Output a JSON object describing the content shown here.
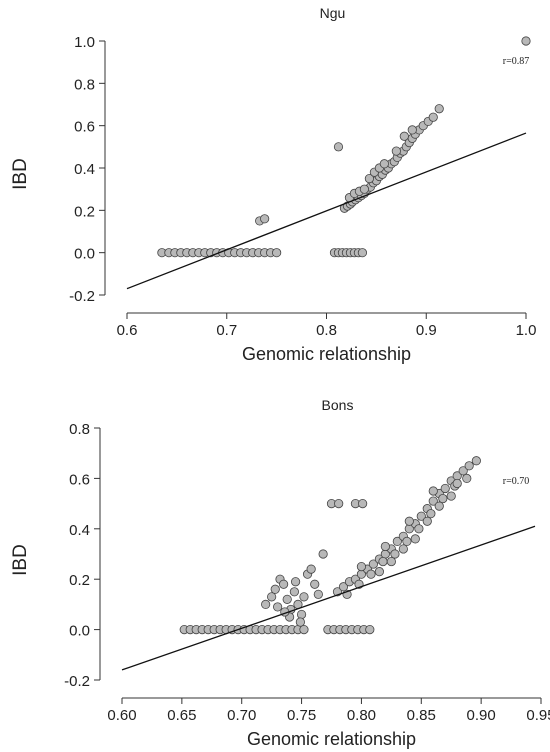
{
  "colors": {
    "point_fill": "#b8b8b8",
    "point_stroke": "#444444",
    "line": "#111111",
    "axis": "#333333"
  },
  "chart_data": [
    {
      "type": "scatter",
      "title": "Ngu",
      "xlabel": "Genomic relationship",
      "ylabel": "IBD",
      "annotation": "r=0.87",
      "xlim": [
        0.6,
        1.0
      ],
      "ylim": [
        -0.2,
        1.0
      ],
      "xticks": [
        "0.6",
        "0.7",
        "0.8",
        "0.9",
        "1.0"
      ],
      "yticks": [
        "-0.2",
        "0.0",
        "0.2",
        "0.4",
        "0.6",
        "0.8",
        "1.0"
      ],
      "grid": false,
      "legend": "none",
      "fit_line": {
        "x": [
          0.6,
          1.0
        ],
        "y": [
          -0.17,
          0.565
        ]
      },
      "points": [
        [
          0.635,
          0
        ],
        [
          0.642,
          0
        ],
        [
          0.648,
          0
        ],
        [
          0.654,
          0
        ],
        [
          0.66,
          0
        ],
        [
          0.666,
          0
        ],
        [
          0.672,
          0
        ],
        [
          0.678,
          0
        ],
        [
          0.684,
          0
        ],
        [
          0.69,
          0
        ],
        [
          0.696,
          0
        ],
        [
          0.702,
          0
        ],
        [
          0.708,
          0
        ],
        [
          0.714,
          0
        ],
        [
          0.72,
          0
        ],
        [
          0.726,
          0
        ],
        [
          0.732,
          0
        ],
        [
          0.738,
          0
        ],
        [
          0.744,
          0
        ],
        [
          0.75,
          0
        ],
        [
          0.808,
          0
        ],
        [
          0.812,
          0
        ],
        [
          0.816,
          0
        ],
        [
          0.82,
          0
        ],
        [
          0.824,
          0
        ],
        [
          0.828,
          0
        ],
        [
          0.832,
          0
        ],
        [
          0.836,
          0
        ],
        [
          0.733,
          0.15
        ],
        [
          0.738,
          0.16
        ],
        [
          0.812,
          0.5
        ],
        [
          1.0,
          1.0
        ],
        [
          0.818,
          0.21
        ],
        [
          0.821,
          0.22
        ],
        [
          0.824,
          0.23
        ],
        [
          0.826,
          0.24
        ],
        [
          0.829,
          0.25
        ],
        [
          0.832,
          0.26
        ],
        [
          0.835,
          0.27
        ],
        [
          0.838,
          0.28
        ],
        [
          0.841,
          0.3
        ],
        [
          0.844,
          0.31
        ],
        [
          0.847,
          0.33
        ],
        [
          0.85,
          0.34
        ],
        [
          0.853,
          0.36
        ],
        [
          0.856,
          0.37
        ],
        [
          0.859,
          0.39
        ],
        [
          0.862,
          0.4
        ],
        [
          0.865,
          0.42
        ],
        [
          0.868,
          0.43
        ],
        [
          0.871,
          0.45
        ],
        [
          0.874,
          0.47
        ],
        [
          0.877,
          0.48
        ],
        [
          0.88,
          0.5
        ],
        [
          0.883,
          0.52
        ],
        [
          0.886,
          0.54
        ],
        [
          0.889,
          0.56
        ],
        [
          0.893,
          0.58
        ],
        [
          0.897,
          0.6
        ],
        [
          0.902,
          0.62
        ],
        [
          0.907,
          0.64
        ],
        [
          0.913,
          0.68
        ],
        [
          0.823,
          0.26
        ],
        [
          0.828,
          0.28
        ],
        [
          0.833,
          0.29
        ],
        [
          0.838,
          0.3
        ],
        [
          0.843,
          0.35
        ],
        [
          0.848,
          0.38
        ],
        [
          0.853,
          0.4
        ],
        [
          0.858,
          0.42
        ],
        [
          0.87,
          0.48
        ],
        [
          0.878,
          0.55
        ],
        [
          0.886,
          0.58
        ]
      ]
    },
    {
      "type": "scatter",
      "title": "Bons",
      "xlabel": "Genomic relationship",
      "ylabel": "IBD",
      "annotation": "r=0.70",
      "xlim": [
        0.6,
        0.95
      ],
      "ylim": [
        -0.2,
        0.8
      ],
      "xticks": [
        "0.60",
        "0.65",
        "0.70",
        "0.75",
        "0.80",
        "0.85",
        "0.90",
        "0.95"
      ],
      "yticks": [
        "-0.2",
        "0.0",
        "0.2",
        "0.4",
        "0.6",
        "0.8"
      ],
      "grid": false,
      "legend": "none",
      "fit_line": {
        "x": [
          0.6,
          0.945
        ],
        "y": [
          -0.16,
          0.41
        ]
      },
      "points": [
        [
          0.652,
          0
        ],
        [
          0.657,
          0
        ],
        [
          0.662,
          0
        ],
        [
          0.667,
          0
        ],
        [
          0.672,
          0
        ],
        [
          0.677,
          0
        ],
        [
          0.682,
          0
        ],
        [
          0.687,
          0
        ],
        [
          0.692,
          0
        ],
        [
          0.697,
          0
        ],
        [
          0.702,
          0
        ],
        [
          0.707,
          0
        ],
        [
          0.712,
          0
        ],
        [
          0.717,
          0
        ],
        [
          0.722,
          0
        ],
        [
          0.727,
          0
        ],
        [
          0.732,
          0
        ],
        [
          0.737,
          0
        ],
        [
          0.742,
          0
        ],
        [
          0.747,
          0
        ],
        [
          0.752,
          0
        ],
        [
          0.772,
          0
        ],
        [
          0.777,
          0
        ],
        [
          0.782,
          0
        ],
        [
          0.787,
          0
        ],
        [
          0.792,
          0
        ],
        [
          0.797,
          0
        ],
        [
          0.802,
          0
        ],
        [
          0.807,
          0
        ],
        [
          0.775,
          0.5
        ],
        [
          0.781,
          0.5
        ],
        [
          0.795,
          0.5
        ],
        [
          0.801,
          0.5
        ],
        [
          0.768,
          0.3
        ],
        [
          0.72,
          0.1
        ],
        [
          0.725,
          0.13
        ],
        [
          0.728,
          0.16
        ],
        [
          0.732,
          0.2
        ],
        [
          0.735,
          0.18
        ],
        [
          0.738,
          0.12
        ],
        [
          0.741,
          0.08
        ],
        [
          0.744,
          0.15
        ],
        [
          0.747,
          0.1
        ],
        [
          0.75,
          0.06
        ],
        [
          0.752,
          0.13
        ],
        [
          0.755,
          0.22
        ],
        [
          0.758,
          0.24
        ],
        [
          0.761,
          0.18
        ],
        [
          0.764,
          0.14
        ],
        [
          0.73,
          0.09
        ],
        [
          0.74,
          0.05
        ],
        [
          0.745,
          0.19
        ],
        [
          0.749,
          0.03
        ],
        [
          0.736,
          0.07
        ],
        [
          0.78,
          0.15
        ],
        [
          0.785,
          0.17
        ],
        [
          0.79,
          0.19
        ],
        [
          0.795,
          0.2
        ],
        [
          0.8,
          0.22
        ],
        [
          0.805,
          0.24
        ],
        [
          0.81,
          0.26
        ],
        [
          0.815,
          0.28
        ],
        [
          0.82,
          0.3
        ],
        [
          0.825,
          0.32
        ],
        [
          0.83,
          0.35
        ],
        [
          0.835,
          0.37
        ],
        [
          0.84,
          0.4
        ],
        [
          0.845,
          0.42
        ],
        [
          0.85,
          0.45
        ],
        [
          0.855,
          0.48
        ],
        [
          0.86,
          0.51
        ],
        [
          0.865,
          0.54
        ],
        [
          0.87,
          0.56
        ],
        [
          0.875,
          0.59
        ],
        [
          0.88,
          0.61
        ],
        [
          0.885,
          0.63
        ],
        [
          0.89,
          0.65
        ],
        [
          0.896,
          0.67
        ],
        [
          0.788,
          0.14
        ],
        [
          0.798,
          0.18
        ],
        [
          0.808,
          0.22
        ],
        [
          0.818,
          0.27
        ],
        [
          0.828,
          0.3
        ],
        [
          0.838,
          0.35
        ],
        [
          0.848,
          0.4
        ],
        [
          0.858,
          0.46
        ],
        [
          0.868,
          0.52
        ],
        [
          0.878,
          0.57
        ],
        [
          0.888,
          0.6
        ],
        [
          0.815,
          0.23
        ],
        [
          0.825,
          0.27
        ],
        [
          0.835,
          0.32
        ],
        [
          0.845,
          0.36
        ],
        [
          0.855,
          0.43
        ],
        [
          0.865,
          0.49
        ],
        [
          0.875,
          0.53
        ],
        [
          0.8,
          0.25
        ],
        [
          0.82,
          0.33
        ],
        [
          0.84,
          0.43
        ],
        [
          0.86,
          0.55
        ],
        [
          0.88,
          0.58
        ]
      ]
    }
  ]
}
